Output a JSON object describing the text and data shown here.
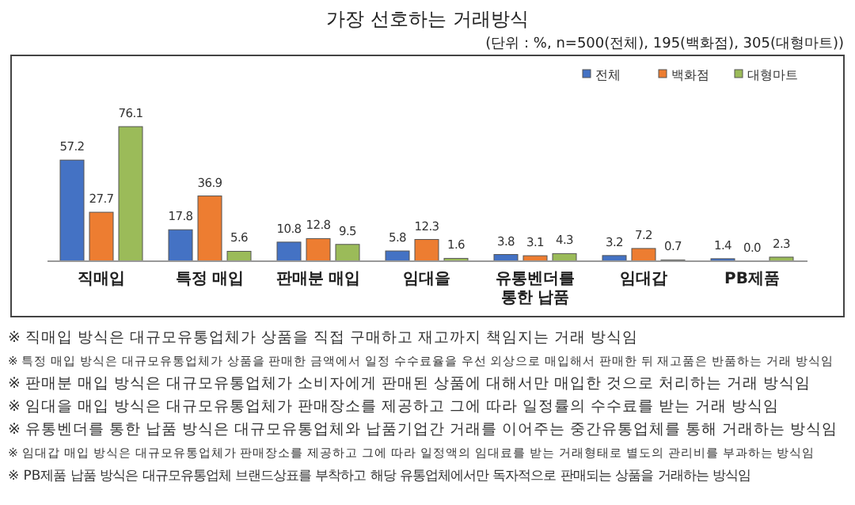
{
  "chart_data": {
    "type": "bar",
    "title": "가장 선호하는 거래방식",
    "subtitle": "(단위 : %, n=500(전체), 195(백화점), 305(대형마트))",
    "categories": [
      "직매입",
      "특정 매입",
      "판매분 매입",
      "임대을",
      "유통벤더를\n통한 납품",
      "임대갑",
      "PB제품"
    ],
    "series": [
      {
        "name": "전체",
        "color": "#4472c4",
        "values": [
          57.2,
          17.8,
          10.8,
          5.8,
          3.8,
          3.2,
          1.4
        ],
        "value_labels": [
          "57.2",
          "17.8",
          "10.8",
          "5.8",
          "3.8",
          "3.2",
          "1.4"
        ]
      },
      {
        "name": "백화점",
        "color": "#ed7d31",
        "values": [
          27.7,
          36.9,
          12.8,
          12.3,
          3.1,
          7.2,
          0.0
        ],
        "value_labels": [
          "27.7",
          "36.9",
          "12.8",
          "12.3",
          "3.1",
          "7.2",
          "0.0"
        ]
      },
      {
        "name": "대형마트",
        "color": "#9bbb59",
        "values": [
          76.1,
          5.6,
          9.5,
          1.6,
          4.3,
          0.7,
          2.3
        ],
        "value_labels": [
          "76.1",
          "5.6",
          "9.5",
          "1.6",
          "4.3",
          "0.7",
          "2.3"
        ]
      }
    ],
    "legend": "top right",
    "annotations": [
      "※ 직매입 방식은 대규모유통업체가 상품을 직접 구매하고 재고까지 책임지는 거래 방식임",
      "※ 특정 매입 방식은 대규모유통업체가 상품을 판매한 금액에서 일정 수수료율을 우선 외상으로 매입해서 판매한 뒤 재고품은 반품하는 거래 방식임",
      "※ 판매분 매입 방식은 대규모유통업체가 소비자에게 판매된 상품에 대해서만 매입한 것으로 처리하는 거래 방식임",
      "※ 임대을 매입 방식은 대규모유통업체가 판매장소를 제공하고 그에 따라 일정률의 수수료를 받는 거래 방식임",
      "※ 유통벤더를 통한 납품 방식은 대규모유통업체와 납품기업간 거래를 이어주는 중간유통업체를 통해 거래하는 방식임",
      "※ 임대갑 매입 방식은 대규모유통업체가 판매장소를 제공하고 그에 따라 일정액의 임대료를 받는 거래형태로 별도의 관리비를 부과하는 방식임",
      "※ PB제품 납품 방식은 대규모유통업체 브랜드상표를 부착하고 해당 유통업체에서만 독자적으로 판매되는 상품을 거래하는 방식임"
    ],
    "relative": false
  }
}
